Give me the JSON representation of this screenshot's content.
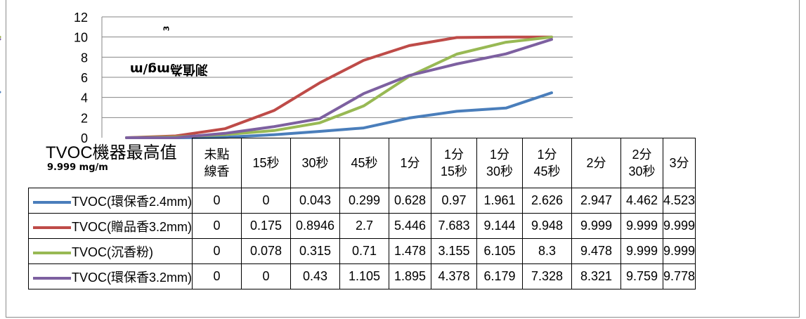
{
  "chart_data": {
    "type": "line",
    "ylabel": "測值為mg/m",
    "ylabel_sup": "3",
    "ylim": [
      0,
      12
    ],
    "yticks": [
      "0",
      "2",
      "4",
      "6",
      "8",
      "10",
      "12"
    ],
    "grid": true,
    "categories": [
      "未點線香",
      "15秒",
      "30秒",
      "45秒",
      "1分",
      "1分15秒",
      "1分30秒",
      "1分45秒",
      "2分",
      "2分30秒",
      "3分"
    ],
    "category_lines": [
      [
        "未點",
        "線香"
      ],
      [
        "15秒"
      ],
      [
        "30秒"
      ],
      [
        "45秒"
      ],
      [
        "1分"
      ],
      [
        "1分",
        "15秒"
      ],
      [
        "1分",
        "30秒"
      ],
      [
        "1分",
        "45秒"
      ],
      [
        "2分"
      ],
      [
        "2分",
        "30秒"
      ],
      [
        "3分"
      ]
    ],
    "series": [
      {
        "name": "TVOC(環保香2.4mm)",
        "color": "#4a7ebb",
        "values": [
          0,
          0,
          0.043,
          0.299,
          0.628,
          0.97,
          1.961,
          2.626,
          2.947,
          4.462,
          4.523
        ]
      },
      {
        "name": "TVOC(贈品香3.2mm)",
        "color": "#be4b48",
        "values": [
          0,
          0.175,
          0.8946,
          2.7,
          5.446,
          7.683,
          9.144,
          9.948,
          9.999,
          9.999,
          9.999
        ]
      },
      {
        "name": "TVOC(沉香粉)",
        "color": "#98b954",
        "values": [
          0,
          0.078,
          0.315,
          0.71,
          1.478,
          3.155,
          6.105,
          8.3,
          9.478,
          9.999,
          9.999
        ]
      },
      {
        "name": "TVOC(環保香3.2mm)",
        "color": "#7d60a0",
        "values": [
          0,
          0,
          0.43,
          1.105,
          1.895,
          4.378,
          6.179,
          7.328,
          8.321,
          9.759,
          9.778
        ]
      }
    ],
    "table_values": [
      [
        "0",
        "0",
        "0.043",
        "0.299",
        "0.628",
        "0.97",
        "1.961",
        "2.626",
        "2.947",
        "4.462",
        "4.523"
      ],
      [
        "0",
        "0.175",
        "0.8946",
        "2.7",
        "5.446",
        "7.683",
        "9.144",
        "9.948",
        "9.999",
        "9.999",
        "9.999"
      ],
      [
        "0",
        "0.078",
        "0.315",
        "0.71",
        "1.478",
        "3.155",
        "6.105",
        "8.3",
        "9.478",
        "9.999",
        "9.999"
      ],
      [
        "0",
        "0",
        "0.43",
        "1.105",
        "1.895",
        "4.378",
        "6.179",
        "7.328",
        "8.321",
        "9.759",
        "9.778"
      ]
    ]
  },
  "side": {
    "title": "TVOC機器最高值",
    "subtitle": "9.999 mg/m"
  }
}
